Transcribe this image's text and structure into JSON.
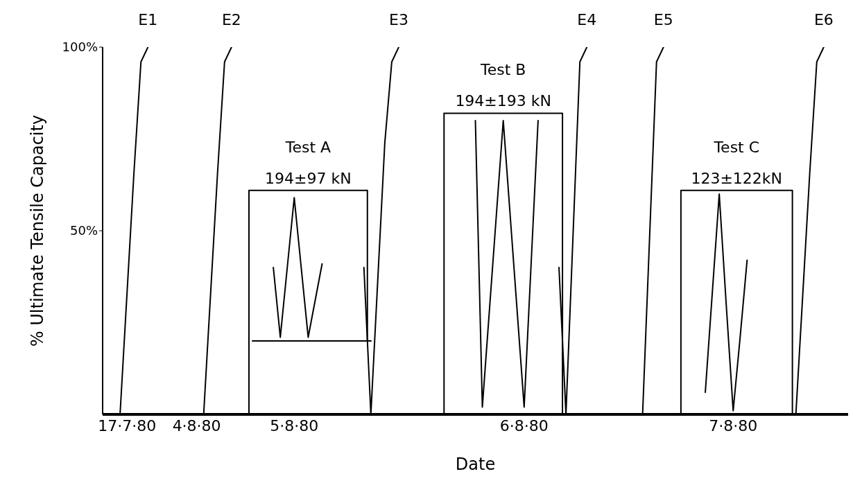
{
  "chart_data": {
    "type": "line",
    "xlabel": "Date",
    "ylabel": "% Ultimate Tensile Capacity",
    "ylim": [
      0,
      100
    ],
    "yticks": [
      {
        "value": 50,
        "label": "50%"
      },
      {
        "value": 100,
        "label": "100%"
      }
    ],
    "categories": [
      null,
      null,
      null,
      "17·7·80",
      null,
      null,
      null,
      null,
      null,
      null,
      null,
      null,
      null,
      "4·8·80",
      null,
      null,
      null,
      null,
      null,
      null,
      null,
      null,
      null,
      null,
      null,
      null,
      null,
      "5·8·80",
      null,
      null,
      null,
      null,
      null,
      null,
      null,
      null,
      null,
      null,
      null,
      null,
      null,
      null,
      null,
      null,
      null,
      null,
      null,
      null,
      null,
      null,
      null,
      null,
      null,
      null,
      null,
      null,
      null,
      null,
      null,
      null,
      "6·8·80",
      null,
      null,
      null,
      null,
      null,
      null,
      null,
      null,
      null,
      null,
      null,
      null,
      null,
      null,
      null,
      null,
      null,
      null,
      null,
      null,
      null,
      null,
      null,
      null,
      null,
      null,
      null,
      null,
      null,
      "7·8·80",
      null,
      null,
      null,
      null,
      null,
      null,
      null,
      null,
      null,
      null,
      null,
      null,
      null,
      null,
      null,
      null
    ],
    "series": [
      {
        "name": "E1",
        "color": "#000000",
        "values": [
          null,
          null,
          0,
          33,
          66,
          96,
          100,
          null,
          null,
          null,
          null,
          null,
          null,
          null,
          null,
          null,
          null,
          null,
          null,
          null,
          null,
          null,
          null,
          null,
          null,
          null,
          null,
          null,
          null,
          null,
          null,
          null,
          null,
          null,
          null,
          null,
          null,
          null,
          null,
          null,
          null,
          null,
          null,
          null,
          null,
          null,
          null,
          null,
          null,
          null,
          null,
          null,
          null,
          null,
          null,
          null,
          null,
          null,
          null,
          null,
          null,
          null,
          null,
          null,
          null,
          null,
          null,
          null,
          null,
          null,
          null,
          null,
          null,
          null,
          null,
          null,
          null,
          null,
          null,
          null,
          null,
          null,
          null,
          null,
          null,
          null,
          null,
          null,
          null,
          null,
          null,
          null,
          null,
          null,
          null,
          null,
          null,
          null,
          null,
          null,
          null,
          null,
          null,
          null,
          null,
          null,
          null
        ]
      },
      {
        "name": "E2",
        "color": "#000000",
        "values": [
          null,
          null,
          null,
          null,
          null,
          null,
          null,
          null,
          null,
          null,
          null,
          null,
          null,
          null,
          0,
          33,
          66,
          96,
          100,
          null,
          null,
          null,
          null,
          null,
          null,
          null,
          null,
          null,
          null,
          null,
          null,
          null,
          null,
          null,
          null,
          null,
          null,
          null,
          null,
          null,
          null,
          null,
          null,
          null,
          null,
          null,
          null,
          null,
          null,
          null,
          null,
          null,
          null,
          null,
          null,
          null,
          null,
          null,
          null,
          null,
          null,
          null,
          null,
          null,
          null,
          null,
          null,
          null,
          null,
          null,
          null,
          null,
          null,
          null,
          null,
          null,
          null,
          null,
          null,
          null,
          null,
          null,
          null,
          null,
          null,
          null,
          null,
          null,
          null,
          null,
          null,
          null,
          null,
          null,
          null,
          null,
          null,
          null,
          null,
          null,
          null,
          null,
          null,
          null,
          null,
          null,
          null
        ]
      },
      {
        "name": "E3",
        "color": "#000000",
        "values": [
          null,
          null,
          null,
          null,
          null,
          null,
          null,
          null,
          null,
          null,
          null,
          null,
          null,
          null,
          null,
          null,
          null,
          null,
          null,
          null,
          null,
          null,
          null,
          null,
          null,
          null,
          null,
          null,
          null,
          null,
          null,
          null,
          null,
          null,
          null,
          null,
          null,
          40,
          0,
          37,
          74,
          96,
          100,
          null,
          null,
          null,
          null,
          null,
          null,
          null,
          null,
          null,
          null,
          null,
          null,
          null,
          null,
          null,
          null,
          null,
          null,
          null,
          null,
          null,
          null,
          null,
          null,
          null,
          null,
          null,
          null,
          null,
          null,
          null,
          null,
          null,
          null,
          null,
          null,
          null,
          null,
          null,
          null,
          null,
          null,
          null,
          null,
          null,
          null,
          null,
          null,
          null,
          null,
          null,
          null,
          null,
          null,
          null,
          null,
          null,
          null,
          null,
          null,
          null,
          null,
          null,
          null
        ]
      },
      {
        "name": "E4",
        "color": "#000000",
        "values": [
          null,
          null,
          null,
          null,
          null,
          null,
          null,
          null,
          null,
          null,
          null,
          null,
          null,
          null,
          null,
          null,
          null,
          null,
          null,
          null,
          null,
          null,
          null,
          null,
          null,
          null,
          null,
          null,
          null,
          null,
          null,
          null,
          null,
          null,
          null,
          null,
          null,
          null,
          null,
          null,
          null,
          null,
          null,
          null,
          null,
          null,
          null,
          null,
          null,
          null,
          null,
          null,
          null,
          null,
          null,
          null,
          null,
          null,
          null,
          null,
          null,
          null,
          null,
          null,
          null,
          40,
          0,
          48,
          96,
          100,
          null,
          null,
          null,
          null,
          null,
          null,
          null,
          null,
          null,
          null,
          null,
          null,
          null,
          null,
          null,
          null,
          null,
          null,
          null,
          null,
          null,
          null,
          null,
          null,
          null,
          null,
          null,
          null,
          null,
          null,
          null,
          null,
          null,
          null,
          null,
          null,
          null
        ]
      },
      {
        "name": "E5",
        "color": "#000000",
        "values": [
          null,
          null,
          null,
          null,
          null,
          null,
          null,
          null,
          null,
          null,
          null,
          null,
          null,
          null,
          null,
          null,
          null,
          null,
          null,
          null,
          null,
          null,
          null,
          null,
          null,
          null,
          null,
          null,
          null,
          null,
          null,
          null,
          null,
          null,
          null,
          null,
          null,
          null,
          null,
          null,
          null,
          null,
          null,
          null,
          null,
          null,
          null,
          null,
          null,
          null,
          null,
          null,
          null,
          null,
          null,
          null,
          null,
          null,
          null,
          null,
          null,
          null,
          null,
          null,
          null,
          null,
          null,
          null,
          null,
          null,
          null,
          null,
          null,
          null,
          null,
          null,
          null,
          0,
          48,
          96,
          100,
          null,
          null,
          null,
          null,
          null,
          null,
          null,
          null,
          null,
          null,
          null,
          null,
          null,
          null,
          null,
          null,
          null,
          null,
          null,
          null,
          null,
          null,
          null,
          null,
          null,
          null
        ]
      },
      {
        "name": "E6",
        "color": "#000000",
        "values": [
          null,
          null,
          null,
          null,
          null,
          null,
          null,
          null,
          null,
          null,
          null,
          null,
          null,
          null,
          null,
          null,
          null,
          null,
          null,
          null,
          null,
          null,
          null,
          null,
          null,
          null,
          null,
          null,
          null,
          null,
          null,
          null,
          null,
          null,
          null,
          null,
          null,
          null,
          null,
          null,
          null,
          null,
          null,
          null,
          null,
          null,
          null,
          null,
          null,
          null,
          null,
          null,
          null,
          null,
          null,
          null,
          null,
          null,
          null,
          null,
          null,
          null,
          null,
          null,
          null,
          null,
          null,
          null,
          null,
          null,
          null,
          null,
          null,
          null,
          null,
          null,
          null,
          null,
          null,
          null,
          null,
          null,
          null,
          null,
          null,
          null,
          null,
          null,
          null,
          null,
          null,
          null,
          null,
          null,
          null,
          null,
          null,
          null,
          null,
          0,
          33,
          66,
          96,
          100,
          null,
          null,
          null
        ]
      },
      {
        "name": "194±97 kN",
        "type": "step",
        "color": "#000000",
        "values": [
          null,
          null,
          null,
          null,
          null,
          null,
          null,
          null,
          null,
          null,
          null,
          null,
          null,
          null,
          null,
          null,
          null,
          null,
          null,
          null,
          0,
          61,
          61,
          61,
          61,
          61,
          61,
          61,
          61,
          61,
          61,
          61,
          61,
          61,
          61,
          61,
          61,
          61,
          20,
          null,
          null,
          null,
          null,
          null,
          null,
          null,
          null,
          null,
          null,
          null,
          null,
          null,
          null,
          null,
          null,
          null,
          null,
          null,
          null,
          null,
          null,
          null,
          null,
          null,
          null,
          null,
          null,
          null,
          null,
          null,
          null,
          null,
          null,
          null,
          null,
          null,
          null,
          null,
          null,
          null,
          null,
          null,
          null,
          null,
          null,
          null,
          null,
          null,
          null,
          null,
          null,
          null,
          null,
          null,
          null,
          null,
          null,
          null,
          null,
          null,
          null,
          null,
          null,
          null,
          null,
          null,
          null
        ]
      },
      {
        "type": "step",
        "color": "#000000",
        "values": [
          null,
          null,
          null,
          null,
          null,
          null,
          null,
          null,
          null,
          null,
          null,
          null,
          null,
          null,
          null,
          null,
          null,
          null,
          null,
          null,
          null,
          20,
          20,
          20,
          20,
          20,
          20,
          20,
          20,
          20,
          20,
          20,
          20,
          20,
          20,
          20,
          20,
          20,
          20,
          null,
          null,
          null,
          null,
          null,
          null,
          null,
          null,
          null,
          null,
          null,
          null,
          null,
          null,
          null,
          null,
          null,
          null,
          null,
          null,
          null,
          null,
          null,
          null,
          null,
          null,
          null,
          null,
          null,
          null,
          null,
          null,
          null,
          null,
          null,
          null,
          null,
          null,
          null,
          null,
          null,
          null,
          null,
          null,
          null,
          null,
          null,
          null,
          null,
          null,
          null,
          null,
          null,
          null,
          null,
          null,
          null,
          null,
          null,
          null,
          null,
          null,
          null,
          null,
          null,
          null,
          null,
          null
        ]
      },
      {
        "color": "#000000",
        "values": [
          null,
          null,
          null,
          null,
          null,
          null,
          null,
          null,
          null,
          null,
          null,
          null,
          null,
          null,
          null,
          null,
          null,
          null,
          null,
          null,
          null,
          null,
          null,
          null,
          40,
          21,
          40,
          59,
          40,
          21,
          31,
          41,
          null,
          null,
          null,
          null,
          null,
          null,
          null,
          null,
          null,
          null,
          null,
          null,
          null,
          null,
          null,
          null,
          null,
          null,
          null,
          null,
          null,
          null,
          null,
          null,
          null,
          null,
          null,
          null,
          null,
          null,
          null,
          null,
          null,
          null,
          null,
          null,
          null,
          null,
          null,
          null,
          null,
          null,
          null,
          null,
          null,
          null,
          null,
          null,
          null,
          null,
          null,
          null,
          null,
          null,
          null,
          null,
          null,
          null,
          null,
          null,
          null,
          null,
          null,
          null,
          null,
          null,
          null,
          null,
          null,
          null,
          null,
          null,
          null,
          null,
          null
        ]
      },
      {
        "name": "194±193 kN",
        "type": "step",
        "color": "#000000",
        "values": [
          null,
          null,
          null,
          null,
          null,
          null,
          null,
          null,
          null,
          null,
          null,
          null,
          null,
          null,
          null,
          null,
          null,
          null,
          null,
          null,
          null,
          null,
          null,
          null,
          null,
          null,
          null,
          null,
          null,
          null,
          null,
          null,
          null,
          null,
          null,
          null,
          null,
          null,
          null,
          null,
          null,
          null,
          null,
          null,
          null,
          null,
          null,
          null,
          0,
          82,
          82,
          82,
          82,
          82,
          82,
          82,
          82,
          82,
          82,
          82,
          82,
          82,
          82,
          82,
          82,
          82,
          0,
          null,
          null,
          null,
          null,
          null,
          null,
          null,
          null,
          null,
          null,
          null,
          null,
          null,
          null,
          null,
          null,
          null,
          null,
          null,
          null,
          null,
          null,
          null,
          null,
          null,
          null,
          null,
          null,
          null,
          null,
          null,
          null,
          null,
          null,
          null,
          null,
          null,
          null,
          null,
          null
        ]
      },
      {
        "color": "#000000",
        "values": [
          null,
          null,
          null,
          null,
          null,
          null,
          null,
          null,
          null,
          null,
          null,
          null,
          null,
          null,
          null,
          null,
          null,
          null,
          null,
          null,
          null,
          null,
          null,
          null,
          null,
          null,
          null,
          null,
          null,
          null,
          null,
          null,
          null,
          null,
          null,
          null,
          null,
          null,
          null,
          null,
          null,
          null,
          null,
          null,
          null,
          null,
          null,
          null,
          null,
          null,
          null,
          null,
          null,
          80,
          2,
          28,
          54,
          80,
          54,
          28,
          2,
          41,
          80,
          null,
          null,
          null,
          null,
          null,
          null,
          null,
          null,
          null,
          null,
          null,
          null,
          null,
          null,
          null,
          null,
          null,
          null,
          null,
          null,
          null,
          null,
          null,
          null,
          null,
          null,
          null,
          null,
          null,
          null,
          null,
          null,
          null,
          null,
          null,
          null,
          null,
          null,
          null,
          null,
          null,
          null,
          null,
          null
        ]
      },
      {
        "name": "123±122kN",
        "type": "step",
        "color": "#000000",
        "values": [
          null,
          null,
          null,
          null,
          null,
          null,
          null,
          null,
          null,
          null,
          null,
          null,
          null,
          null,
          null,
          null,
          null,
          null,
          null,
          null,
          null,
          null,
          null,
          null,
          null,
          null,
          null,
          null,
          null,
          null,
          null,
          null,
          null,
          null,
          null,
          null,
          null,
          null,
          null,
          null,
          null,
          null,
          null,
          null,
          null,
          null,
          null,
          null,
          null,
          null,
          null,
          null,
          null,
          null,
          null,
          null,
          null,
          null,
          null,
          null,
          null,
          null,
          null,
          null,
          null,
          null,
          null,
          null,
          null,
          null,
          null,
          null,
          null,
          null,
          null,
          null,
          null,
          null,
          null,
          null,
          null,
          null,
          0,
          61,
          61,
          61,
          61,
          61,
          61,
          61,
          61,
          61,
          61,
          61,
          61,
          61,
          61,
          61,
          61,
          0,
          null,
          null,
          null,
          null,
          null,
          null,
          null
        ]
      },
      {
        "color": "#000000",
        "values": [
          null,
          null,
          null,
          null,
          null,
          null,
          null,
          null,
          null,
          null,
          null,
          null,
          null,
          null,
          null,
          null,
          null,
          null,
          null,
          null,
          null,
          null,
          null,
          null,
          null,
          null,
          null,
          null,
          null,
          null,
          null,
          null,
          null,
          null,
          null,
          null,
          null,
          null,
          null,
          null,
          null,
          null,
          null,
          null,
          null,
          null,
          null,
          null,
          null,
          null,
          null,
          null,
          null,
          null,
          null,
          null,
          null,
          null,
          null,
          null,
          null,
          null,
          null,
          null,
          null,
          null,
          null,
          null,
          null,
          null,
          null,
          null,
          null,
          null,
          null,
          null,
          null,
          null,
          null,
          null,
          null,
          null,
          null,
          null,
          null,
          null,
          6,
          33,
          60,
          30,
          1,
          21,
          42,
          null,
          null,
          null,
          null,
          null,
          null,
          null,
          null,
          null,
          null,
          null,
          null,
          null,
          null
        ]
      }
    ],
    "annotations": [
      "Test A",
      "Test B",
      "Test C"
    ],
    "grid": false,
    "marker": "none",
    "line_style": "solid"
  }
}
